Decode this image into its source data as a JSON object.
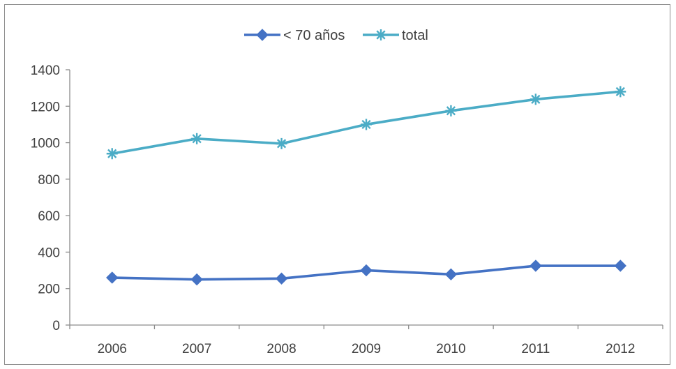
{
  "chart_data": {
    "type": "line",
    "title": "",
    "xlabel": "",
    "ylabel": "",
    "categories": [
      "2006",
      "2007",
      "2008",
      "2009",
      "2010",
      "2011",
      "2012"
    ],
    "ylim": [
      0,
      1400
    ],
    "yticks": [
      0,
      200,
      400,
      600,
      800,
      1000,
      1200,
      1400
    ],
    "grid": false,
    "legend_position": "top-center",
    "series": [
      {
        "name": "< 70 años",
        "marker": "diamond",
        "color": "#4472c4",
        "values": [
          260,
          250,
          255,
          300,
          278,
          325,
          325
        ]
      },
      {
        "name": "total",
        "marker": "star",
        "color": "#4bacc6",
        "values": [
          940,
          1022,
          995,
          1100,
          1175,
          1238,
          1280
        ]
      }
    ]
  }
}
